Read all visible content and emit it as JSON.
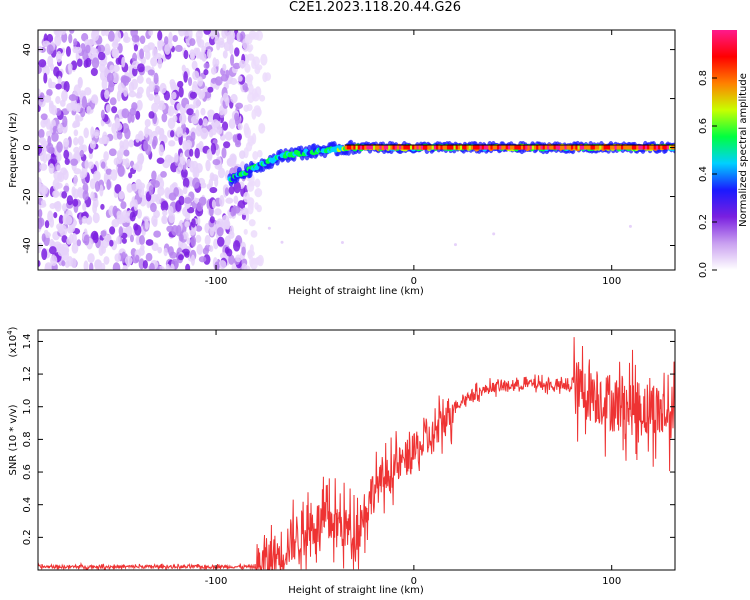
{
  "title": "C2E1.2023.118.20.44.G26",
  "chart_data": [
    {
      "type": "heatmap",
      "xlabel": "Height of straight line (km)",
      "ylabel": "Frequency (Hz)",
      "xlim": [
        -190,
        132
      ],
      "ylim": [
        -50,
        48
      ],
      "xticks": [
        -100,
        0,
        100
      ],
      "xtick_labels": [
        "-100",
        "0",
        "100"
      ],
      "yticks": [
        -40,
        -20,
        0,
        20,
        40
      ],
      "ytick_labels": [
        "-40",
        "-20",
        "0",
        "20",
        "40"
      ],
      "colorbar": {
        "label": "Normalized spectral amplitude",
        "range": [
          0,
          1
        ],
        "ticks": [
          0.0,
          0.2,
          0.4,
          0.6,
          0.8
        ],
        "tick_labels": [
          "0.0",
          "0.2",
          "0.4",
          "0.6",
          "0.8"
        ],
        "colormap": [
          "#ffffff",
          "#c9a0f0",
          "#7a1fe0",
          "#1a1aff",
          "#00d0ff",
          "#00ff40",
          "#c8ff00",
          "#ff8000",
          "#ff0000",
          "#ff1a8c"
        ]
      },
      "noise_region_x": [
        -190,
        -85
      ],
      "signal_track": [
        {
          "x": -93,
          "f": -13
        },
        {
          "x": -80,
          "f": -8
        },
        {
          "x": -65,
          "f": -3
        },
        {
          "x": -45,
          "f": -1
        },
        {
          "x": -30,
          "f": 0
        },
        {
          "x": 0,
          "f": 0
        },
        {
          "x": 132,
          "f": 0
        }
      ]
    },
    {
      "type": "line",
      "xlabel": "Height of straight line (km)",
      "ylabel": "SNR (10 * v/v)",
      "yscale_label": "(x10",
      "yscale_exponent": "4",
      "yscale_suffix": ")",
      "xlim": [
        -190,
        132
      ],
      "ylim": [
        0,
        1.47
      ],
      "xticks": [
        -100,
        0,
        100
      ],
      "xtick_labels": [
        "-100",
        "0",
        "100"
      ],
      "yticks": [
        0.2,
        0.4,
        0.6,
        0.8,
        1.0,
        1.2,
        1.4
      ],
      "ytick_labels": [
        "0.2",
        "0.4",
        "0.6",
        "0.8",
        "1.0",
        "1.2",
        "1.4"
      ],
      "color": "#ee3333",
      "trend": {
        "x": [
          -190,
          -80,
          -70,
          -60,
          -50,
          -40,
          -30,
          -20,
          -10,
          0,
          10,
          20,
          30,
          40,
          50,
          60,
          70,
          80,
          90,
          100,
          110,
          120,
          132
        ],
        "y": [
          0.02,
          0.02,
          0.08,
          0.2,
          0.28,
          0.3,
          0.22,
          0.5,
          0.62,
          0.72,
          0.82,
          1.0,
          1.08,
          1.12,
          1.13,
          1.14,
          1.13,
          1.12,
          1.08,
          1.02,
          1.0,
          0.98,
          0.95
        ]
      }
    }
  ]
}
